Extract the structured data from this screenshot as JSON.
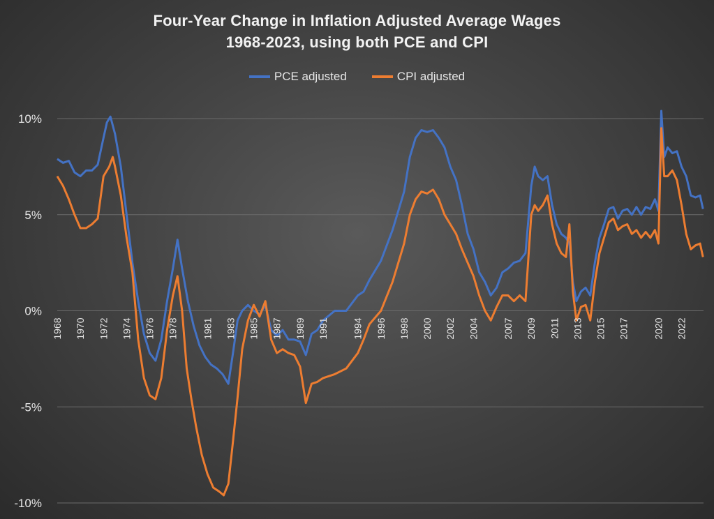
{
  "colors": {
    "pce": "#4472c4",
    "cpi": "#ed7d31",
    "grid": "#6a6a6a"
  },
  "chart_data": {
    "type": "line",
    "title_line1": "Four-Year Change in Inflation Adjusted Average Wages",
    "title_line2": "1968-2023, using both PCE and CPI",
    "xlabel": "",
    "ylabel": "",
    "ylim": [
      -10,
      10
    ],
    "xlim": [
      1968,
      2023.9
    ],
    "yticks": [
      "10%",
      "5%",
      "0%",
      "-5%",
      "-10%"
    ],
    "ytick_values": [
      10,
      5,
      0,
      -5,
      -10
    ],
    "xticks": [
      "1968",
      "1970",
      "1972",
      "1974",
      "1976",
      "1978",
      "1981",
      "1983",
      "1985",
      "1987",
      "1989",
      "1991",
      "1994",
      "1996",
      "1998",
      "2000",
      "2002",
      "2004",
      "2007",
      "2009",
      "2011",
      "2013",
      "2015",
      "2017",
      "2020",
      "2022"
    ],
    "legend": {
      "position": "top-center"
    },
    "grid": true,
    "series": [
      {
        "name": "PCE adjusted",
        "points": [
          [
            1968,
            7.9
          ],
          [
            1968.5,
            7.7
          ],
          [
            1969,
            7.8
          ],
          [
            1969.5,
            7.2
          ],
          [
            1970,
            7.0
          ],
          [
            1970.5,
            7.3
          ],
          [
            1971,
            7.3
          ],
          [
            1971.5,
            7.6
          ],
          [
            1972,
            9.0
          ],
          [
            1972.3,
            9.8
          ],
          [
            1972.6,
            10.1
          ],
          [
            1973,
            9.2
          ],
          [
            1973.5,
            7.5
          ],
          [
            1974,
            5.0
          ],
          [
            1974.5,
            2.5
          ],
          [
            1975,
            0.5
          ],
          [
            1975.5,
            -1.2
          ],
          [
            1976,
            -2.2
          ],
          [
            1976.5,
            -2.6
          ],
          [
            1977,
            -1.5
          ],
          [
            1977.5,
            0.5
          ],
          [
            1978,
            2.2
          ],
          [
            1978.4,
            3.7
          ],
          [
            1978.8,
            2.2
          ],
          [
            1979.3,
            0.5
          ],
          [
            1979.8,
            -0.8
          ],
          [
            1980.3,
            -1.8
          ],
          [
            1980.8,
            -2.4
          ],
          [
            1981.3,
            -2.8
          ],
          [
            1981.8,
            -3.0
          ],
          [
            1982.3,
            -3.3
          ],
          [
            1982.8,
            -3.8
          ],
          [
            1983.2,
            -2.2
          ],
          [
            1983.6,
            -0.5
          ],
          [
            1984,
            0.0
          ],
          [
            1984.5,
            0.3
          ],
          [
            1985,
            0.0
          ],
          [
            1985.5,
            -0.2
          ],
          [
            1986,
            0.3
          ],
          [
            1986.5,
            -1.0
          ],
          [
            1987,
            -1.3
          ],
          [
            1987.5,
            -1.0
          ],
          [
            1988,
            -1.5
          ],
          [
            1988.5,
            -1.5
          ],
          [
            1989,
            -1.6
          ],
          [
            1989.5,
            -2.3
          ],
          [
            1990,
            -1.2
          ],
          [
            1990.5,
            -1.0
          ],
          [
            1991,
            -0.5
          ],
          [
            1992,
            0.0
          ],
          [
            1993,
            0.0
          ],
          [
            1994,
            0.8
          ],
          [
            1994.5,
            1.0
          ],
          [
            1995,
            1.6
          ],
          [
            1996,
            2.6
          ],
          [
            1997,
            4.2
          ],
          [
            1998,
            6.2
          ],
          [
            1998.5,
            8.0
          ],
          [
            1999,
            9.0
          ],
          [
            1999.5,
            9.4
          ],
          [
            2000,
            9.3
          ],
          [
            2000.5,
            9.4
          ],
          [
            2001,
            9.0
          ],
          [
            2001.5,
            8.5
          ],
          [
            2002,
            7.5
          ],
          [
            2002.5,
            6.8
          ],
          [
            2003,
            5.5
          ],
          [
            2003.5,
            4.0
          ],
          [
            2004,
            3.2
          ],
          [
            2004.5,
            2.0
          ],
          [
            2005,
            1.5
          ],
          [
            2005.5,
            0.8
          ],
          [
            2006,
            1.2
          ],
          [
            2006.5,
            2.0
          ],
          [
            2007,
            2.2
          ],
          [
            2007.5,
            2.5
          ],
          [
            2008,
            2.6
          ],
          [
            2008.5,
            3.0
          ],
          [
            2009,
            6.5
          ],
          [
            2009.3,
            7.5
          ],
          [
            2009.6,
            7.0
          ],
          [
            2010,
            6.8
          ],
          [
            2010.4,
            7.0
          ],
          [
            2010.8,
            5.5
          ],
          [
            2011.2,
            4.5
          ],
          [
            2011.6,
            4.0
          ],
          [
            2012,
            3.8
          ],
          [
            2012.3,
            3.5
          ],
          [
            2012.6,
            1.5
          ],
          [
            2012.9,
            0.5
          ],
          [
            2013.3,
            1.0
          ],
          [
            2013.7,
            1.2
          ],
          [
            2014.1,
            0.8
          ],
          [
            2014.5,
            2.5
          ],
          [
            2014.9,
            3.8
          ],
          [
            2015.3,
            4.5
          ],
          [
            2015.7,
            5.3
          ],
          [
            2016.1,
            5.4
          ],
          [
            2016.5,
            4.8
          ],
          [
            2016.9,
            5.2
          ],
          [
            2017.3,
            5.3
          ],
          [
            2017.7,
            5.0
          ],
          [
            2018.1,
            5.4
          ],
          [
            2018.5,
            5.0
          ],
          [
            2018.9,
            5.4
          ],
          [
            2019.3,
            5.3
          ],
          [
            2019.7,
            5.8
          ],
          [
            2020.0,
            5.2
          ],
          [
            2020.25,
            10.4
          ],
          [
            2020.5,
            8.0
          ],
          [
            2020.8,
            8.5
          ],
          [
            2021.2,
            8.2
          ],
          [
            2021.6,
            8.3
          ],
          [
            2022.0,
            7.5
          ],
          [
            2022.4,
            7.0
          ],
          [
            2022.8,
            6.0
          ],
          [
            2023.2,
            5.9
          ],
          [
            2023.6,
            6.0
          ],
          [
            2023.85,
            5.3
          ]
        ]
      },
      {
        "name": "CPI adjusted",
        "points": [
          [
            1968,
            7.0
          ],
          [
            1968.5,
            6.5
          ],
          [
            1969,
            5.8
          ],
          [
            1969.5,
            5.0
          ],
          [
            1970,
            4.3
          ],
          [
            1970.5,
            4.3
          ],
          [
            1971,
            4.5
          ],
          [
            1971.5,
            4.8
          ],
          [
            1972,
            7.0
          ],
          [
            1972.5,
            7.5
          ],
          [
            1972.8,
            8.0
          ],
          [
            1973,
            7.5
          ],
          [
            1973.5,
            6.0
          ],
          [
            1974,
            3.8
          ],
          [
            1974.5,
            2.0
          ],
          [
            1975,
            -1.5
          ],
          [
            1975.5,
            -3.5
          ],
          [
            1976,
            -4.4
          ],
          [
            1976.5,
            -4.6
          ],
          [
            1977,
            -3.5
          ],
          [
            1977.5,
            -1.0
          ],
          [
            1978,
            0.8
          ],
          [
            1978.4,
            1.8
          ],
          [
            1978.8,
            0.0
          ],
          [
            1979.2,
            -3.0
          ],
          [
            1979.6,
            -4.6
          ],
          [
            1980,
            -6.0
          ],
          [
            1980.5,
            -7.5
          ],
          [
            1981,
            -8.5
          ],
          [
            1981.5,
            -9.2
          ],
          [
            1982,
            -9.4
          ],
          [
            1982.4,
            -9.6
          ],
          [
            1982.8,
            -9.0
          ],
          [
            1983.2,
            -6.8
          ],
          [
            1983.6,
            -4.5
          ],
          [
            1984,
            -2.0
          ],
          [
            1984.5,
            -0.5
          ],
          [
            1985,
            0.3
          ],
          [
            1985.5,
            -0.3
          ],
          [
            1986,
            0.5
          ],
          [
            1986.5,
            -1.5
          ],
          [
            1987,
            -2.2
          ],
          [
            1987.5,
            -2.0
          ],
          [
            1988,
            -2.2
          ],
          [
            1988.5,
            -2.3
          ],
          [
            1989,
            -2.9
          ],
          [
            1989.5,
            -4.8
          ],
          [
            1990,
            -3.8
          ],
          [
            1990.5,
            -3.7
          ],
          [
            1991,
            -3.5
          ],
          [
            1992,
            -3.3
          ],
          [
            1993,
            -3.0
          ],
          [
            1994,
            -2.2
          ],
          [
            1994.5,
            -1.5
          ],
          [
            1995,
            -0.7
          ],
          [
            1996,
            0.0
          ],
          [
            1997,
            1.5
          ],
          [
            1998,
            3.5
          ],
          [
            1998.5,
            5.0
          ],
          [
            1999,
            5.8
          ],
          [
            1999.5,
            6.2
          ],
          [
            2000,
            6.1
          ],
          [
            2000.5,
            6.3
          ],
          [
            2001,
            5.8
          ],
          [
            2001.5,
            5.0
          ],
          [
            2002,
            4.5
          ],
          [
            2002.5,
            4.0
          ],
          [
            2003,
            3.2
          ],
          [
            2003.5,
            2.5
          ],
          [
            2004,
            1.8
          ],
          [
            2004.5,
            0.8
          ],
          [
            2005,
            0.0
          ],
          [
            2005.5,
            -0.5
          ],
          [
            2006,
            0.2
          ],
          [
            2006.5,
            0.8
          ],
          [
            2007,
            0.8
          ],
          [
            2007.5,
            0.5
          ],
          [
            2008,
            0.8
          ],
          [
            2008.5,
            0.5
          ],
          [
            2009,
            5.0
          ],
          [
            2009.3,
            5.5
          ],
          [
            2009.6,
            5.2
          ],
          [
            2010,
            5.5
          ],
          [
            2010.4,
            6.0
          ],
          [
            2010.8,
            4.5
          ],
          [
            2011.2,
            3.5
          ],
          [
            2011.6,
            3.0
          ],
          [
            2012,
            2.8
          ],
          [
            2012.3,
            4.5
          ],
          [
            2012.6,
            1.0
          ],
          [
            2012.9,
            -0.5
          ],
          [
            2013.3,
            0.2
          ],
          [
            2013.7,
            0.3
          ],
          [
            2014.1,
            -0.5
          ],
          [
            2014.5,
            1.5
          ],
          [
            2014.9,
            3.0
          ],
          [
            2015.3,
            3.8
          ],
          [
            2015.7,
            4.6
          ],
          [
            2016.1,
            4.8
          ],
          [
            2016.5,
            4.2
          ],
          [
            2016.9,
            4.4
          ],
          [
            2017.3,
            4.5
          ],
          [
            2017.7,
            4.0
          ],
          [
            2018.1,
            4.2
          ],
          [
            2018.5,
            3.8
          ],
          [
            2018.9,
            4.1
          ],
          [
            2019.3,
            3.8
          ],
          [
            2019.7,
            4.2
          ],
          [
            2020.0,
            3.5
          ],
          [
            2020.25,
            9.5
          ],
          [
            2020.5,
            7.0
          ],
          [
            2020.8,
            7.0
          ],
          [
            2021.2,
            7.3
          ],
          [
            2021.6,
            6.8
          ],
          [
            2022.0,
            5.5
          ],
          [
            2022.4,
            4.0
          ],
          [
            2022.8,
            3.2
          ],
          [
            2023.2,
            3.4
          ],
          [
            2023.6,
            3.5
          ],
          [
            2023.85,
            2.8
          ]
        ]
      }
    ]
  }
}
